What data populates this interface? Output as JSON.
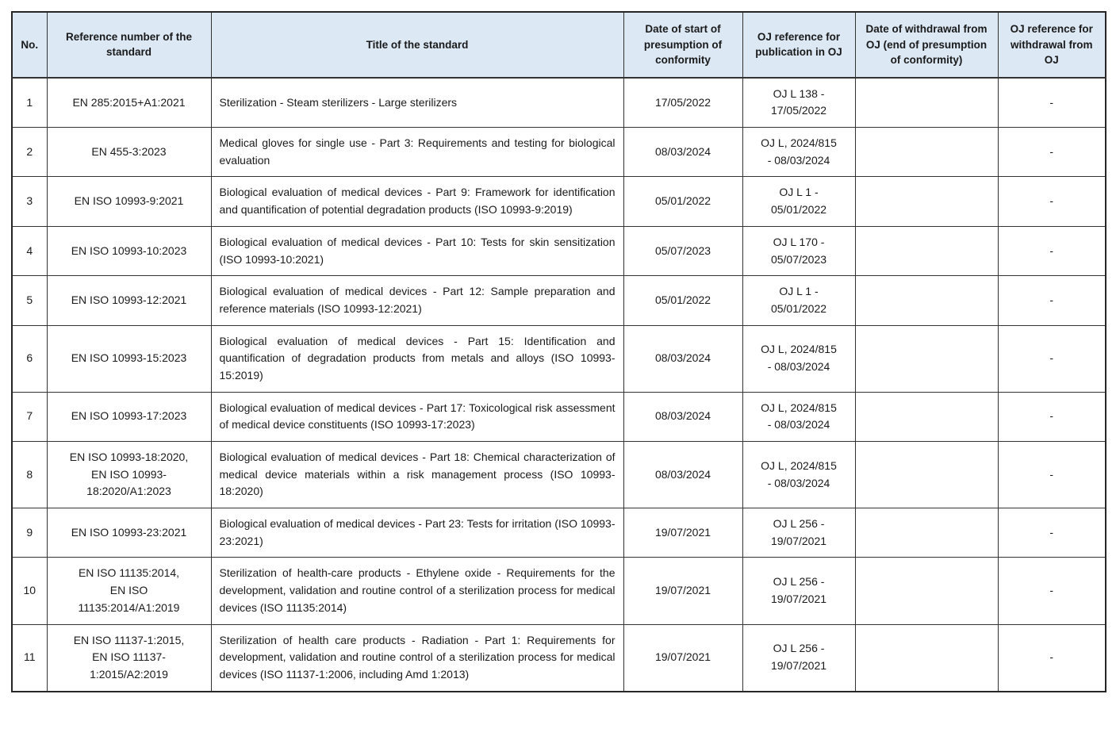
{
  "colors": {
    "header_bg": "#dce8f4",
    "border": "#333333",
    "text": "#1a1a1a"
  },
  "table": {
    "headers": [
      "No.",
      "Reference number of the standard",
      "Title of the standard",
      "Date of start of presumption of conformity",
      "OJ reference for publication in OJ",
      "Date of withdrawal from OJ (end of presumption of conformity)",
      "OJ reference for withdrawal from OJ"
    ],
    "rows": [
      {
        "no": "1",
        "ref": "EN 285:2015+A1:2021",
        "title": "Sterilization - Steam sterilizers - Large sterilizers",
        "date_start": "17/05/2022",
        "oj_pub": "OJ L 138 -\n17/05/2022",
        "date_withdrawal": "",
        "oj_withdrawal": "-"
      },
      {
        "no": "2",
        "ref": "EN 455-3:2023",
        "title": "Medical gloves for single use - Part 3: Requirements and testing for biological evaluation",
        "date_start": "08/03/2024",
        "oj_pub": "OJ L, 2024/815\n- 08/03/2024",
        "date_withdrawal": "",
        "oj_withdrawal": "-"
      },
      {
        "no": "3",
        "ref": "EN ISO 10993-9:2021",
        "title": "Biological evaluation of medical devices - Part 9: Framework for identification and quantification of potential degradation products (ISO 10993-9:2019)",
        "date_start": "05/01/2022",
        "oj_pub": "OJ L 1 -\n05/01/2022",
        "date_withdrawal": "",
        "oj_withdrawal": "-"
      },
      {
        "no": "4",
        "ref": "EN ISO 10993-10:2023",
        "title": "Biological evaluation of medical devices - Part 10: Tests for skin sensitization (ISO 10993-10:2021)",
        "date_start": "05/07/2023",
        "oj_pub": "OJ L 170 -\n05/07/2023",
        "date_withdrawal": "",
        "oj_withdrawal": "-"
      },
      {
        "no": "5",
        "ref": "EN ISO 10993-12:2021",
        "title": "Biological evaluation of medical devices - Part 12: Sample preparation and reference materials (ISO 10993-12:2021)",
        "date_start": "05/01/2022",
        "oj_pub": "OJ L 1 -\n05/01/2022",
        "date_withdrawal": "",
        "oj_withdrawal": "-"
      },
      {
        "no": "6",
        "ref": "EN ISO 10993-15:2023",
        "title": "Biological evaluation of medical devices - Part 15: Identification and quantification of degradation products from metals and alloys (ISO 10993-15:2019)",
        "date_start": "08/03/2024",
        "oj_pub": "OJ L, 2024/815\n- 08/03/2024",
        "date_withdrawal": "",
        "oj_withdrawal": "-"
      },
      {
        "no": "7",
        "ref": "EN ISO 10993-17:2023",
        "title": "Biological evaluation of medical devices - Part 17: Toxicological risk assessment of medical device constituents (ISO 10993-17:2023)",
        "date_start": "08/03/2024",
        "oj_pub": "OJ L, 2024/815\n- 08/03/2024",
        "date_withdrawal": "",
        "oj_withdrawal": "-"
      },
      {
        "no": "8",
        "ref": "EN ISO 10993-18:2020,\nEN ISO 10993-\n18:2020/A1:2023",
        "title": "Biological evaluation of medical devices - Part 18: Chemical characterization of medical device materials within a risk management process (ISO 10993-18:2020)",
        "date_start": "08/03/2024",
        "oj_pub": "OJ L, 2024/815\n- 08/03/2024",
        "date_withdrawal": "",
        "oj_withdrawal": "-"
      },
      {
        "no": "9",
        "ref": "EN ISO 10993-23:2021",
        "title": "Biological evaluation of medical devices - Part 23: Tests for irritation (ISO 10993-23:2021)",
        "date_start": "19/07/2021",
        "oj_pub": "OJ L 256 -\n19/07/2021",
        "date_withdrawal": "",
        "oj_withdrawal": "-"
      },
      {
        "no": "10",
        "ref": "EN ISO 11135:2014,\nEN ISO\n11135:2014/A1:2019",
        "title": "Sterilization of health-care products - Ethylene oxide - Requirements for the development, validation and routine control of a sterilization process for medical devices (ISO 11135:2014)",
        "date_start": "19/07/2021",
        "oj_pub": "OJ L 256 -\n19/07/2021",
        "date_withdrawal": "",
        "oj_withdrawal": "-"
      },
      {
        "no": "11",
        "ref": "EN ISO 11137-1:2015,\nEN ISO 11137-\n1:2015/A2:2019",
        "title": "Sterilization of health care products - Radiation - Part 1: Requirements for development, validation and routine control of a sterilization process for medical devices (ISO 11137-1:2006, including Amd 1:2013)",
        "date_start": "19/07/2021",
        "oj_pub": "OJ L 256 -\n19/07/2021",
        "date_withdrawal": "",
        "oj_withdrawal": "-"
      }
    ]
  }
}
